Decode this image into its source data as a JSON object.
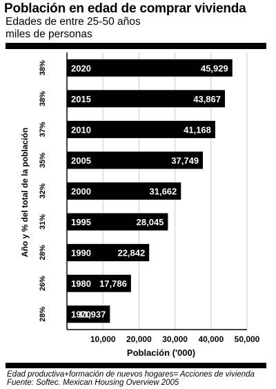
{
  "header": {
    "title": "Población en edad de comprar vivienda",
    "subtitle_line1": "Edades de entre 25-50 años",
    "subtitle_line2": "miles de personas"
  },
  "footer": {
    "note_line1": "Edad productiva+formación de nuevos hogares= Acciones de vivienda",
    "note_line2": "Fuente: Softec. Mexican Housing Overview 2005"
  },
  "chart_data": {
    "type": "bar",
    "orientation": "horizontal",
    "categories": [
      "2020",
      "2015",
      "2010",
      "2005",
      "2000",
      "1995",
      "1990",
      "1980",
      "1970"
    ],
    "percent_labels": [
      "38%",
      "38%",
      "37%",
      "35%",
      "32%",
      "31%",
      "28%",
      "26%",
      "28%"
    ],
    "values": [
      45929,
      43867,
      41168,
      37749,
      31662,
      28045,
      22842,
      17786,
      11937
    ],
    "value_labels": [
      "45,929",
      "43,867",
      "41,168",
      "37,749",
      "31,662",
      "28,045",
      "22,842",
      "17,786",
      "11,937"
    ],
    "xlabel": "Población ('000)",
    "ylabel": "Año y % del total de la población",
    "xlim": [
      0,
      50000
    ],
    "xticks": [
      10000,
      20000,
      30000,
      40000,
      50000
    ],
    "xtick_labels": [
      "10,000",
      "20,000",
      "30,000",
      "40,000",
      "50,000"
    ],
    "grid": true,
    "colors": {
      "bar": "#000000",
      "grid": "#cccccc",
      "value_text": "#ffffff",
      "text": "#000000"
    }
  }
}
